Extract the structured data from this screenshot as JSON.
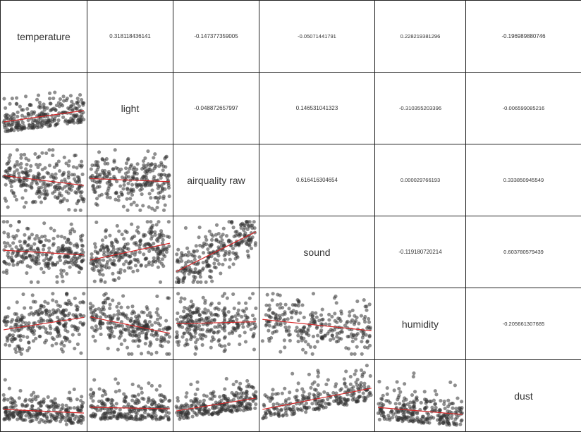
{
  "chart_data": {
    "type": "scatter-matrix",
    "variables": [
      "temperature",
      "light",
      "airquality raw",
      "sound",
      "humidity",
      "dust"
    ],
    "correlations": [
      [
        "",
        "0.318118436141",
        "-0.147377359005",
        "-0.05071441791",
        "0.228219381296",
        "-0.196989880746"
      ],
      [
        "",
        "",
        "-0.048872657997",
        "0.146531041323",
        "-0.310355203396",
        "-0.006599085216"
      ],
      [
        "",
        "",
        "",
        "0.616416304654",
        "0.000029766193",
        "0.333850945549"
      ],
      [
        "",
        "",
        "",
        "",
        "-0.119180720214",
        "0.603780579439"
      ],
      [
        "",
        "",
        "",
        "",
        "",
        "-0.205661307685"
      ]
    ],
    "corr_values": [
      [
        null,
        0.318118436141,
        -0.147377359005,
        -0.05071441791,
        0.228219381296,
        -0.196989880746
      ],
      [
        null,
        null,
        -0.048872657997,
        0.146531041323,
        -0.310355203396,
        -0.006599085216
      ],
      [
        null,
        null,
        null,
        0.616416304654,
        2.9766193e-05,
        0.333850945549
      ],
      [
        null,
        null,
        null,
        null,
        -0.119180720214,
        0.603780579439
      ],
      [
        null,
        null,
        null,
        null,
        null,
        -0.205661307685
      ]
    ],
    "regression_color": "#d62728",
    "point_color": "#333333"
  }
}
